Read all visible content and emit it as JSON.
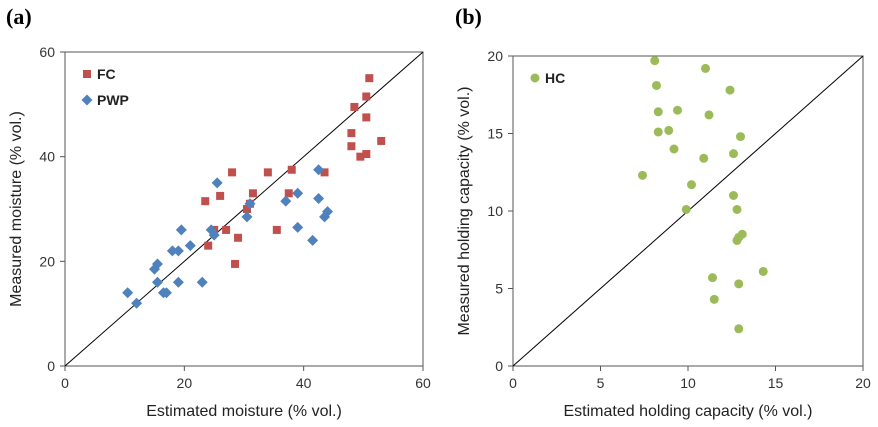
{
  "chart_data": [
    {
      "panel_label": "(a)",
      "type": "scatter",
      "xlabel": "Estimated moisture (% vol.)",
      "ylabel": "Measured moisture (% vol.)",
      "xlim": [
        0,
        60
      ],
      "ylim": [
        0,
        60
      ],
      "xticks": [
        "0",
        "20",
        "40",
        "60"
      ],
      "yticks": [
        "0",
        "20",
        "40",
        "60"
      ],
      "reference_line": "1:1",
      "grid": false,
      "legend_position": "top-left",
      "series": [
        {
          "name": "FC",
          "marker": "square",
          "color": "#c0504d",
          "points": [
            [
              23.5,
              31.5
            ],
            [
              24,
              23
            ],
            [
              25,
              26
            ],
            [
              26,
              32.5
            ],
            [
              27,
              26
            ],
            [
              28,
              37
            ],
            [
              28.5,
              19.5
            ],
            [
              29,
              24.5
            ],
            [
              30.5,
              30
            ],
            [
              31,
              31
            ],
            [
              31.5,
              33
            ],
            [
              34,
              37
            ],
            [
              35.5,
              26
            ],
            [
              37.5,
              33
            ],
            [
              38,
              37.5
            ],
            [
              43.5,
              37
            ],
            [
              48,
              42
            ],
            [
              48,
              44.5
            ],
            [
              48.5,
              49.5
            ],
            [
              49.5,
              40
            ],
            [
              50.5,
              40.5
            ],
            [
              50.5,
              47.5
            ],
            [
              50.5,
              51.5
            ],
            [
              51,
              55
            ],
            [
              53,
              43
            ]
          ]
        },
        {
          "name": "PWP",
          "marker": "diamond",
          "color": "#4f81bd",
          "points": [
            [
              10.5,
              14
            ],
            [
              12,
              12
            ],
            [
              15,
              18.5
            ],
            [
              15.5,
              16
            ],
            [
              15.5,
              19.5
            ],
            [
              16.5,
              14
            ],
            [
              17,
              14
            ],
            [
              18,
              22
            ],
            [
              19,
              16
            ],
            [
              19,
              22
            ],
            [
              19.5,
              26
            ],
            [
              21,
              23
            ],
            [
              23,
              16
            ],
            [
              24.5,
              26
            ],
            [
              25,
              25
            ],
            [
              25.5,
              35
            ],
            [
              30.5,
              28.5
            ],
            [
              31,
              31
            ],
            [
              37,
              31.5
            ],
            [
              39,
              33
            ],
            [
              39,
              26.5
            ],
            [
              41.5,
              24
            ],
            [
              42.5,
              32
            ],
            [
              42.5,
              37.5
            ],
            [
              43.5,
              28.5
            ],
            [
              44,
              29.5
            ]
          ]
        }
      ]
    },
    {
      "panel_label": "(b)",
      "type": "scatter",
      "xlabel": "Estimated holding capacity (% vol.)",
      "ylabel": "Measured holding capacity (% vol.)",
      "xlim": [
        0,
        20
      ],
      "ylim": [
        0,
        20
      ],
      "xticks": [
        "0",
        "5",
        "10",
        "15",
        "20"
      ],
      "yticks": [
        "0",
        "5",
        "10",
        "15",
        "20"
      ],
      "reference_line": "1:1",
      "grid": false,
      "legend_position": "top-left",
      "series": [
        {
          "name": "HC",
          "marker": "circle",
          "color": "#9bbb59",
          "points": [
            [
              7.4,
              12.3
            ],
            [
              8.1,
              19.7
            ],
            [
              8.2,
              18.1
            ],
            [
              8.3,
              16.4
            ],
            [
              8.3,
              15.1
            ],
            [
              8.9,
              15.2
            ],
            [
              9.2,
              14.0
            ],
            [
              9.4,
              16.5
            ],
            [
              9.9,
              10.1
            ],
            [
              10.2,
              11.7
            ],
            [
              10.9,
              13.4
            ],
            [
              11.0,
              19.2
            ],
            [
              11.2,
              16.2
            ],
            [
              11.4,
              5.7
            ],
            [
              11.5,
              4.3
            ],
            [
              12.4,
              17.8
            ],
            [
              12.6,
              13.7
            ],
            [
              12.6,
              11.0
            ],
            [
              12.8,
              10.1
            ],
            [
              12.8,
              8.1
            ],
            [
              12.9,
              2.4
            ],
            [
              12.9,
              5.3
            ],
            [
              12.9,
              8.3
            ],
            [
              13.0,
              14.8
            ],
            [
              13.1,
              8.5
            ],
            [
              14.3,
              6.1
            ]
          ]
        }
      ]
    }
  ]
}
